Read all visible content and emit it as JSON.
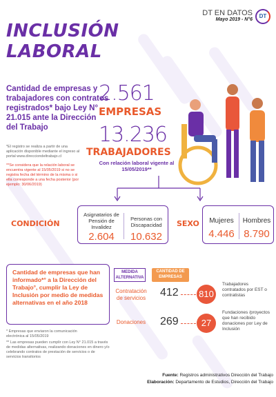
{
  "header": {
    "title_line1": "INCLUSIÓN",
    "title_line2": "LABORAL",
    "brand": "DT EN DATOS",
    "issue": "Mayo 2019 - N°6",
    "logo": "DT"
  },
  "section1": {
    "question": "Cantidad de empresas y trabajadores con contratos registrados* bajo Ley N° 21.015 ante la Dirección del Trabajo",
    "note1": "*El registro se realiza a partir de una aplicación disponible mediante el ingreso al portal www.direcciondeltrabajo.cl",
    "note2": "**Se considera que la relación laboral se encuentra vigente al 15/05/2019 si no se registra fecha del término de la misma o si ella corresponde a una fecha posterior (por ejemplo: 30/06/2019)",
    "companies_value": "2.561",
    "companies_label": "EMPRESAS",
    "workers_value": "13.236",
    "workers_label": "TRABAJADORES",
    "workers_sub": "Con relación laboral vigente al 15/05/2019**"
  },
  "condicion": {
    "label": "CONDICIÓN",
    "a_label": "Asignatarios de Pensión de Invalidez",
    "a_value": "2.604",
    "b_label": "Personas con Discapacidad",
    "b_value": "10.632"
  },
  "sexo": {
    "label": "SEXO",
    "a_label": "Mujeres",
    "a_value": "4.446",
    "b_label": "Hombres",
    "b_value": "8.790"
  },
  "section2": {
    "question": "Cantidad de empresas que han informado*° a la Dirección del Trabajo°, cumplir la Ley de Inclusión por medio de medidas alternativas en el año 2018",
    "note1": "* Empresas que enviaron la comunicación electrónica al 15/05/2019",
    "note2": "** Las empresas pueden cumplir con Ley N° 21.015 a través de medidas alternativas, realizando donaciones en dinero y/o celebrando contratos de prestación de servicios o de servicios transitorios",
    "col1": "MEDIDA ALTERNATIVA",
    "col2": "CANTIDAD DE EMPRESAS",
    "rows": [
      {
        "name": "Contratación de servicios",
        "value": "412",
        "count": "810",
        "desc": "Trabajadores contratados por EST o contratistas"
      },
      {
        "name": "Donaciones",
        "value": "269",
        "count": "27",
        "desc": "Fundaciones /proyectos que han recibido donaciones por Ley de Inclusión"
      }
    ]
  },
  "footer": {
    "source_label": "Fuente:",
    "source": "Registros administrativos Dirección del Trabajo",
    "author_label": "Elaboración:",
    "author": "Departamento de Estudios, Dirección del Trabajo"
  },
  "colors": {
    "purple": "#6a2fa6",
    "orange": "#e95a2c",
    "red": "#e2372b"
  }
}
